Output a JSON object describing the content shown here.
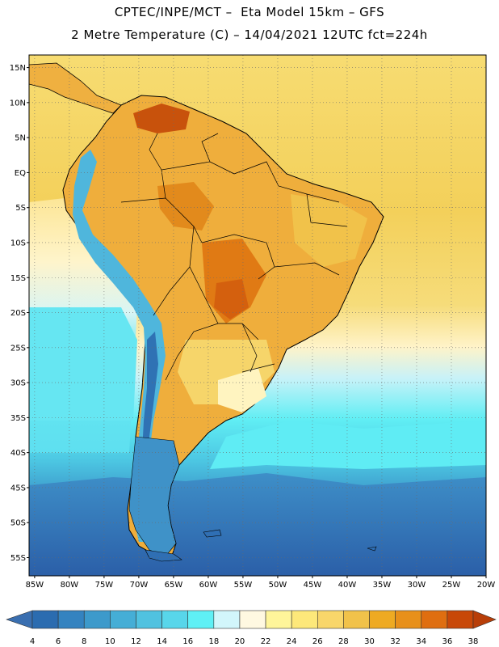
{
  "header": {
    "line1": "CPTEC/INPE/MCT –  Eta Model 15km – GFS",
    "line2": "2 Metre Temperature (C) – 14/04/2021 12UTC fct=224h"
  },
  "axes": {
    "lat_labels": [
      "15N",
      "10N",
      "5N",
      "EQ",
      "5S",
      "10S",
      "15S",
      "20S",
      "25S",
      "30S",
      "35S",
      "40S",
      "45S",
      "50S",
      "55S"
    ],
    "lon_labels": [
      "85W",
      "80W",
      "75W",
      "70W",
      "65W",
      "60W",
      "55W",
      "50W",
      "45W",
      "40W",
      "35W",
      "30W",
      "25W",
      "20W"
    ]
  },
  "colorbar": {
    "labels": [
      "4",
      "6",
      "8",
      "10",
      "12",
      "14",
      "16",
      "18",
      "20",
      "22",
      "24",
      "26",
      "28",
      "30",
      "32",
      "34",
      "36",
      "38"
    ],
    "colors": [
      "#2b6cb0",
      "#3483c0",
      "#3d9acb",
      "#45aed6",
      "#50c2e0",
      "#58d6ea",
      "#5ff0f5",
      "#d2f6fb",
      "#fff8e1",
      "#fff59a",
      "#fde87a",
      "#f8d66a",
      "#f1c24a",
      "#eeaa22",
      "#e8901a",
      "#df6e10",
      "#c84808"
    ],
    "low_color": "#3a6fb0",
    "high_color": "#b83e08"
  },
  "palette": {
    "ocean_north": "#f5d45e",
    "ocean_south": "#2f6fb4",
    "land_warm": "#efb040",
    "land_hot": "#e28a1c",
    "border": "#000000"
  }
}
